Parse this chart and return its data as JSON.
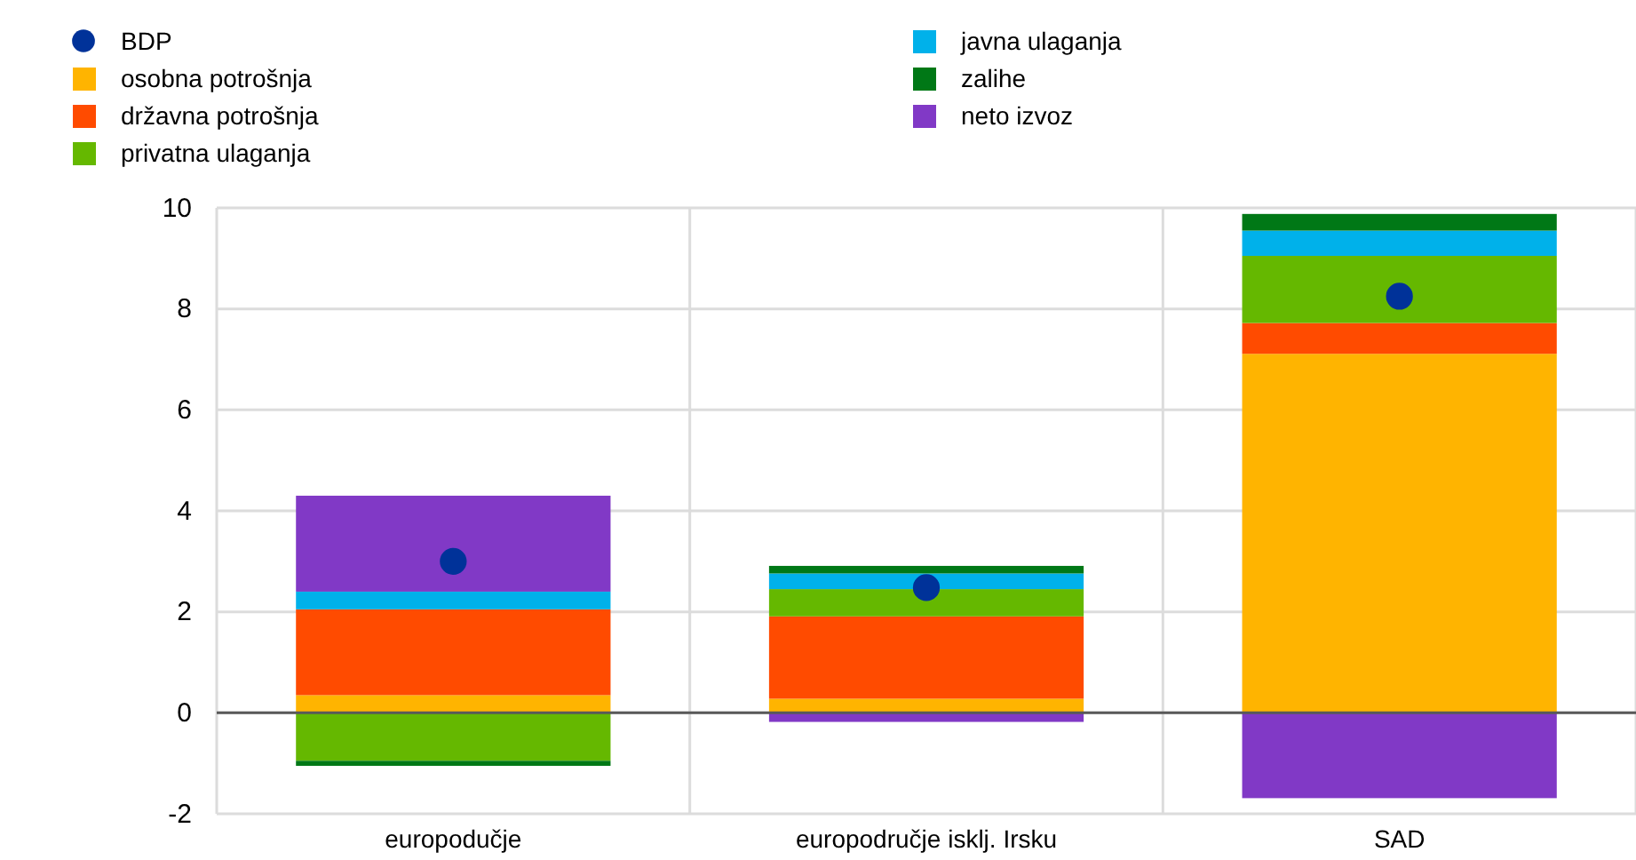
{
  "chart_data": {
    "type": "bar",
    "stacked": true,
    "categories": [
      "europodučje",
      "europodručje isklj. Irsku",
      "SAD"
    ],
    "series": [
      {
        "name": "BDP",
        "type": "scatter",
        "color": "#003299",
        "values": [
          3.0,
          2.48,
          8.25
        ]
      },
      {
        "name": "osobna potrošnja",
        "color": "#ffb400",
        "values": [
          0.35,
          0.28,
          7.11
        ]
      },
      {
        "name": "državna potrošnja",
        "color": "#ff4b00",
        "values": [
          1.7,
          1.63,
          0.61
        ]
      },
      {
        "name": "privatna ulaganja",
        "color": "#65b800",
        "values": [
          -0.95,
          0.54,
          1.33
        ]
      },
      {
        "name": "javna ulaganja",
        "color": "#00b1ea",
        "values": [
          0.35,
          0.31,
          0.5
        ]
      },
      {
        "name": "zalihe",
        "color": "#007816",
        "values": [
          -0.1,
          0.15,
          0.33
        ]
      },
      {
        "name": "neto izvoz",
        "color": "#8139c6",
        "values": [
          1.9,
          -0.18,
          -1.69
        ]
      }
    ],
    "ylim": [
      -2,
      10
    ],
    "yticks": [
      -2,
      0,
      2,
      4,
      6,
      8,
      10
    ],
    "grid": true,
    "legend": "top",
    "marker": "circle"
  }
}
